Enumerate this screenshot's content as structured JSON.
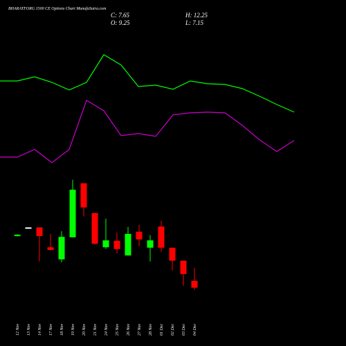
{
  "chart_data": [
    {
      "type": "candlestick",
      "title": "BHARATFORG 1500 CE Options Chart MunafaSutra.com",
      "info": [
        "C: 7.65",
        "O: 9.25",
        "H: 12.25",
        "L: 7.15"
      ],
      "categories": [
        "12 Nov",
        "13 Nov",
        "14 Nov",
        "17 Nov",
        "18 Nov",
        "19 Nov",
        "20 Nov",
        "21 Nov",
        "24 Nov",
        "25 Nov",
        "26 Nov",
        "27 Nov",
        "28 Nov",
        "01 Dec",
        "02 Dec",
        "03 Dec",
        "04 Dec"
      ],
      "open": [
        19.6,
        21.6,
        21.6,
        17.0,
        14.2,
        19.3,
        31.8,
        24.9,
        17.0,
        18.5,
        15.1,
        20.6,
        16.9,
        21.8,
        16.9,
        13.9,
        9.25
      ],
      "high": [
        20.0,
        21.6,
        21.6,
        20.1,
        20.7,
        32.6,
        31.8,
        24.9,
        23.6,
        20.4,
        21.7,
        22.2,
        19.8,
        23.1,
        16.9,
        13.9,
        12.25
      ],
      "low": [
        19.5,
        21.6,
        13.7,
        16.2,
        13.5,
        19.3,
        24.1,
        17.6,
        16.6,
        15.6,
        15.1,
        17.2,
        13.7,
        15.9,
        11.6,
        8.1,
        7.15
      ],
      "close": [
        19.9,
        21.6,
        19.6,
        16.4,
        19.4,
        30.3,
        26.2,
        17.8,
        18.6,
        16.6,
        20.1,
        18.8,
        18.6,
        16.9,
        13.9,
        10.8,
        7.65
      ],
      "up_color": "#00ff00",
      "down_color": "#ff0000",
      "flat_color": "#ffffff",
      "ylim": [
        4,
        44
      ]
    },
    {
      "type": "line",
      "x": [
        0,
        1,
        2,
        3,
        4,
        5,
        6,
        7,
        8,
        9,
        10,
        11,
        12,
        13,
        14,
        15,
        16,
        17
      ],
      "xlim": [
        0,
        17
      ],
      "ylim": [
        0,
        500
      ],
      "series": [
        {
          "color": "#00ff00",
          "values": [
            383,
            383,
            389,
            381,
            370,
            381,
            421,
            406,
            375,
            377,
            371,
            383,
            379,
            378,
            372,
            361,
            349,
            338
          ]
        },
        {
          "color": "#cc00cc",
          "values": [
            273,
            273,
            284,
            265,
            284,
            355,
            340,
            304,
            307,
            303,
            334,
            337,
            338,
            337,
            319,
            298,
            281,
            297
          ]
        }
      ]
    }
  ]
}
